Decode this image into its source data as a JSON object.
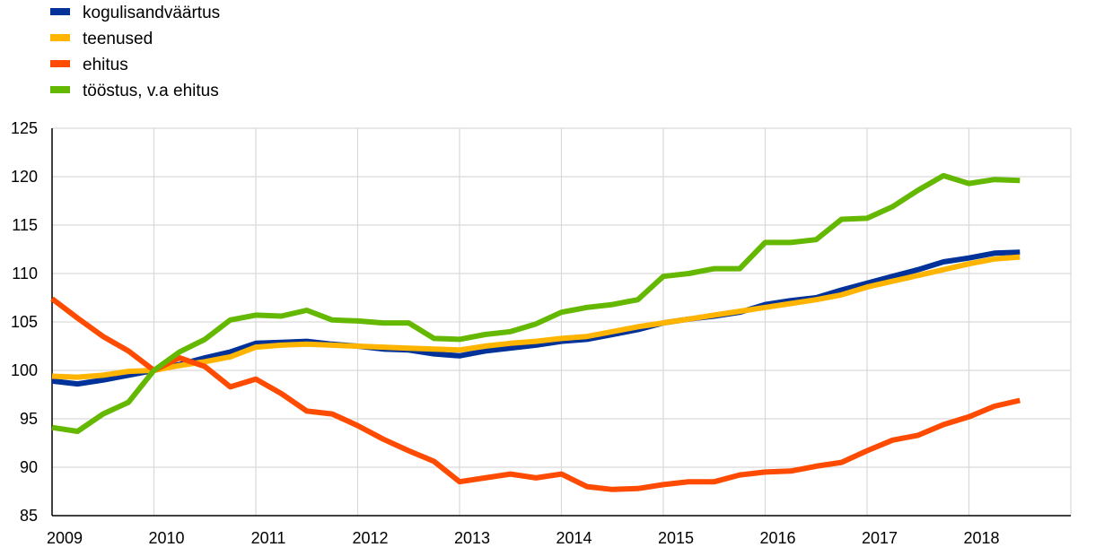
{
  "chart_data": {
    "type": "line",
    "title": "",
    "xlabel": "",
    "ylabel": "",
    "ylim": [
      85,
      125
    ],
    "yticks": [
      85,
      90,
      95,
      100,
      105,
      110,
      115,
      120,
      125
    ],
    "xlim": [
      2009.0,
      2019.0
    ],
    "xticks": [
      2009,
      2010,
      2011,
      2012,
      2013,
      2014,
      2015,
      2016,
      2017,
      2018
    ],
    "grid": true,
    "legend": "top-left",
    "x": [
      2009.0,
      2009.25,
      2009.5,
      2009.75,
      2010.0,
      2010.25,
      2010.5,
      2010.75,
      2011.0,
      2011.25,
      2011.5,
      2011.75,
      2012.0,
      2012.25,
      2012.5,
      2012.75,
      2013.0,
      2013.25,
      2013.5,
      2013.75,
      2014.0,
      2014.25,
      2014.5,
      2014.75,
      2015.0,
      2015.25,
      2015.5,
      2015.75,
      2016.0,
      2016.25,
      2016.5,
      2016.75,
      2017.0,
      2017.25,
      2017.5,
      2017.75,
      2018.0,
      2018.25,
      2018.5
    ],
    "series": [
      {
        "name": "kogulisandväärtus",
        "color": "#003299",
        "values": [
          98.9,
          98.6,
          99.0,
          99.5,
          100.0,
          100.6,
          101.3,
          101.9,
          102.8,
          102.9,
          103.0,
          102.7,
          102.5,
          102.2,
          102.1,
          101.7,
          101.5,
          102.0,
          102.3,
          102.6,
          103.0,
          103.2,
          103.7,
          104.2,
          104.9,
          105.3,
          105.6,
          106.0,
          106.8,
          107.2,
          107.5,
          108.3,
          109.0,
          109.7,
          110.4,
          111.2,
          111.6,
          112.1,
          112.2
        ]
      },
      {
        "name": "teenused",
        "color": "#ffb400",
        "values": [
          99.4,
          99.3,
          99.5,
          99.9,
          100.0,
          100.5,
          100.9,
          101.4,
          102.4,
          102.6,
          102.7,
          102.6,
          102.5,
          102.4,
          102.3,
          102.2,
          102.1,
          102.5,
          102.8,
          103.0,
          103.3,
          103.5,
          104.0,
          104.5,
          104.9,
          105.3,
          105.7,
          106.1,
          106.5,
          106.9,
          107.3,
          107.8,
          108.6,
          109.2,
          109.8,
          110.4,
          111.0,
          111.5,
          111.7
        ]
      },
      {
        "name": "ehitus",
        "color": "#ff4b00",
        "values": [
          107.4,
          105.4,
          103.5,
          102.0,
          100.0,
          101.3,
          100.4,
          98.3,
          99.1,
          97.6,
          95.8,
          95.5,
          94.3,
          92.9,
          91.7,
          90.6,
          88.5,
          88.9,
          89.3,
          88.9,
          89.3,
          88.0,
          87.7,
          87.8,
          88.2,
          88.5,
          88.5,
          89.2,
          89.5,
          89.6,
          90.1,
          90.5,
          91.7,
          92.8,
          93.3,
          94.4,
          95.2,
          96.3,
          96.9
        ]
      },
      {
        "name": "tööstus, v.a ehitus",
        "color": "#65b800",
        "values": [
          94.1,
          93.7,
          95.5,
          96.7,
          100.0,
          101.9,
          103.2,
          105.2,
          105.7,
          105.6,
          106.2,
          105.2,
          105.1,
          104.9,
          104.9,
          103.3,
          103.2,
          103.7,
          104.0,
          104.8,
          106.0,
          106.5,
          106.8,
          107.3,
          109.7,
          110.0,
          110.5,
          110.5,
          113.2,
          113.2,
          113.5,
          115.6,
          115.7,
          116.9,
          118.6,
          120.1,
          119.3,
          119.7,
          119.6
        ]
      }
    ]
  }
}
